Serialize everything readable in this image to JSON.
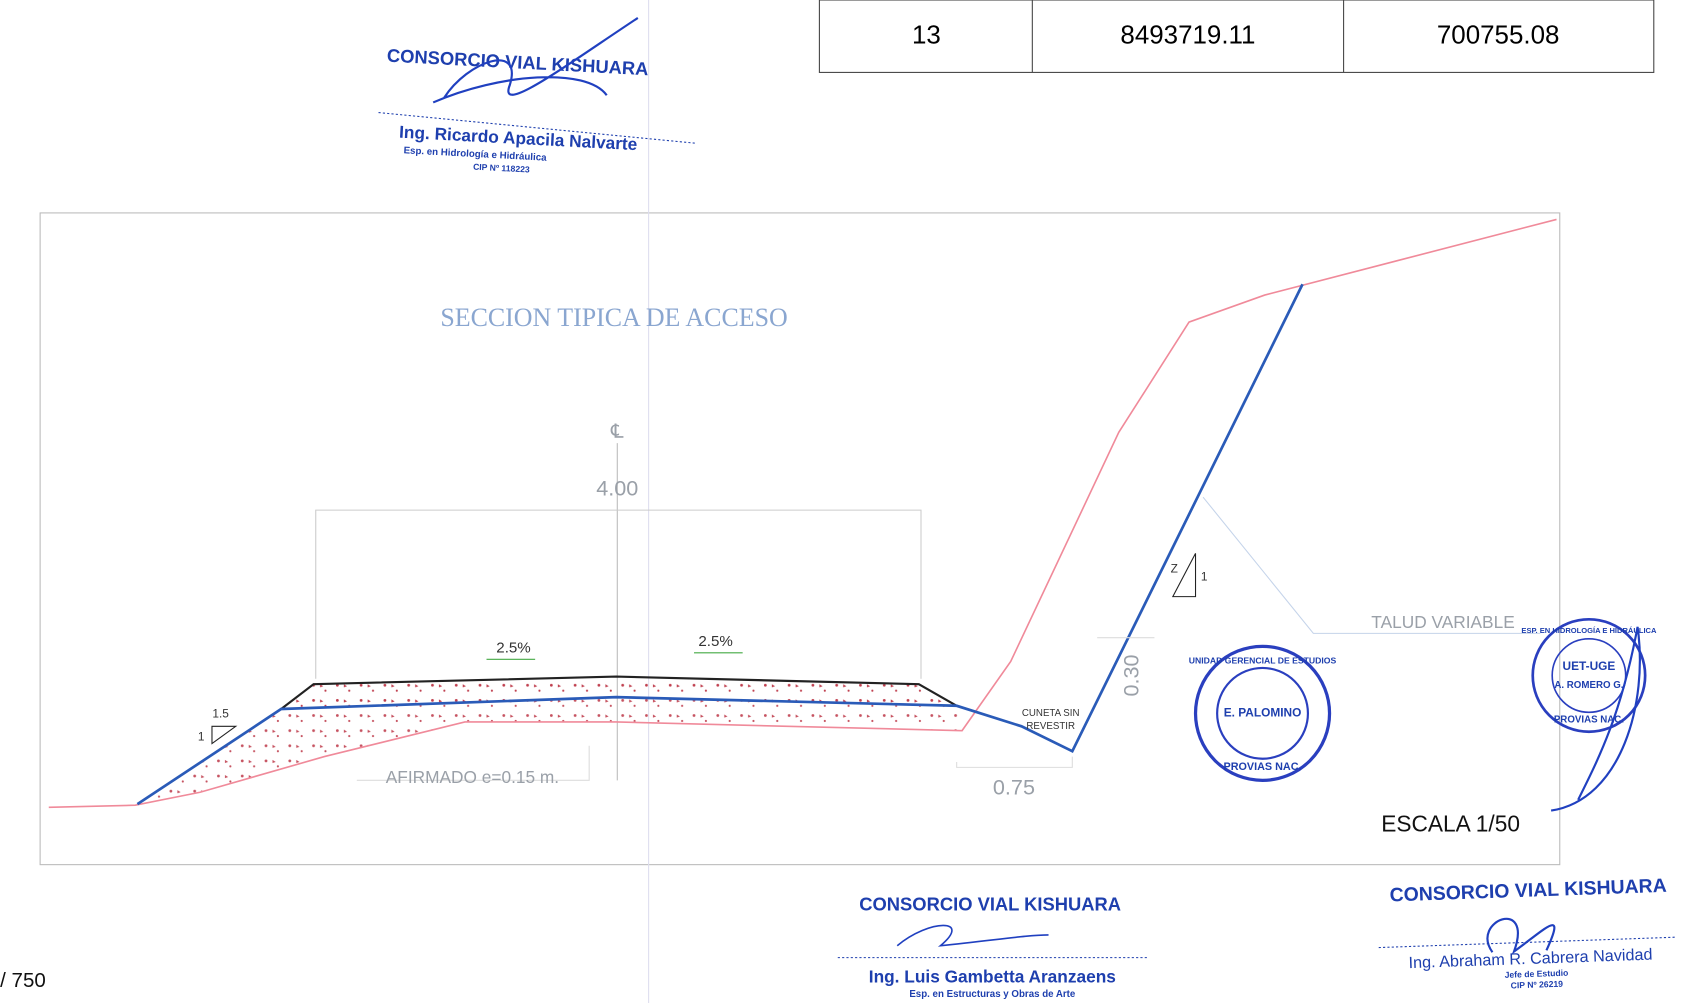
{
  "table": {
    "rows": [
      [
        13,
        8493719.11,
        700755.08
      ]
    ]
  },
  "stamps": [
    {
      "company": "CONSORCIO VIAL KISHUARA",
      "name": "Ing. Ricardo Apacila Nalvarte",
      "specialty": "Esp. en Hidrología e Hidráulica",
      "cip": "CIP Nº 118223"
    },
    {
      "company": "CONSORCIO VIAL KISHUARA",
      "name": "Ing. Luis Gambetta Aranzaens",
      "specialty": "Esp. en Estructuras y Obras de Arte"
    },
    {
      "company": "CONSORCIO VIAL KISHUARA",
      "name": "Ing. Abraham R. Cabrera Navidad",
      "role": "Jefe de Estudio",
      "cip": "CIP Nº 26219"
    }
  ],
  "drawing": {
    "title": "SECCION TIPICA DE ACCESO",
    "centerline": "℄",
    "width": "4.00",
    "slope_left": "2.5%",
    "slope_right": "2.5%",
    "side_slope_h": "1.5",
    "side_slope_v": "1",
    "afirmado": "AFIRMADO e=0.15 m.",
    "cuneta_1": "CUNETA SIN",
    "cuneta_2": "REVESTIR",
    "cuneta_depth": "0.30",
    "cuneta_width": "0.75",
    "talud_z": "Z",
    "talud_1": "1",
    "talud": "TALUD VARIABLE",
    "scale": "ESCALA 1/50"
  },
  "seals": [
    {
      "top": "UNIDAD GERENCIAL DE ESTUDIOS",
      "center": "E. PALOMINO",
      "bottom": "PROVIAS NAC."
    },
    {
      "top": "ESP. EN HIDROLOGÍA E HIDRÁULICA",
      "center": "UET-UGE",
      "center2": "A. ROMERO G.",
      "bottom": "PROVIAS NAC."
    }
  ],
  "page": "/ 750"
}
